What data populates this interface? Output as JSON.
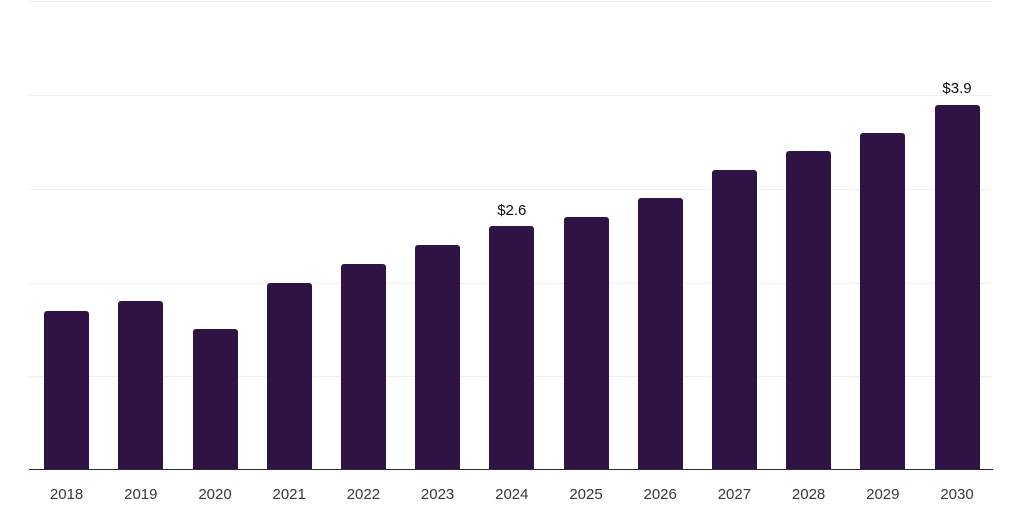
{
  "page": {
    "background": "#ffffff"
  },
  "chart_data": {
    "type": "bar",
    "title": "",
    "xlabel": "",
    "ylabel": "",
    "categories": [
      "2018",
      "2019",
      "2020",
      "2021",
      "2022",
      "2023",
      "2024",
      "2025",
      "2026",
      "2027",
      "2028",
      "2029",
      "2030"
    ],
    "values": [
      1.7,
      1.8,
      1.5,
      2.0,
      2.2,
      2.4,
      2.6,
      2.7,
      2.9,
      3.2,
      3.4,
      3.6,
      3.9
    ],
    "data_labels": [
      "",
      "",
      "",
      "",
      "",
      "",
      "$2.6",
      "",
      "",
      "",
      "",
      "",
      "$3.9"
    ],
    "ylim": [
      0,
      5
    ],
    "grid": true,
    "gridline_values": [
      1,
      2,
      3,
      4,
      5
    ],
    "y_axis_labels_visible": false,
    "legend": null,
    "colors": {
      "bar": "#2E1344",
      "gridline": "#f0f0f2",
      "axis_line": "#2d2a33",
      "tick_label": "#383838",
      "data_label": "#0d0d0d"
    }
  }
}
